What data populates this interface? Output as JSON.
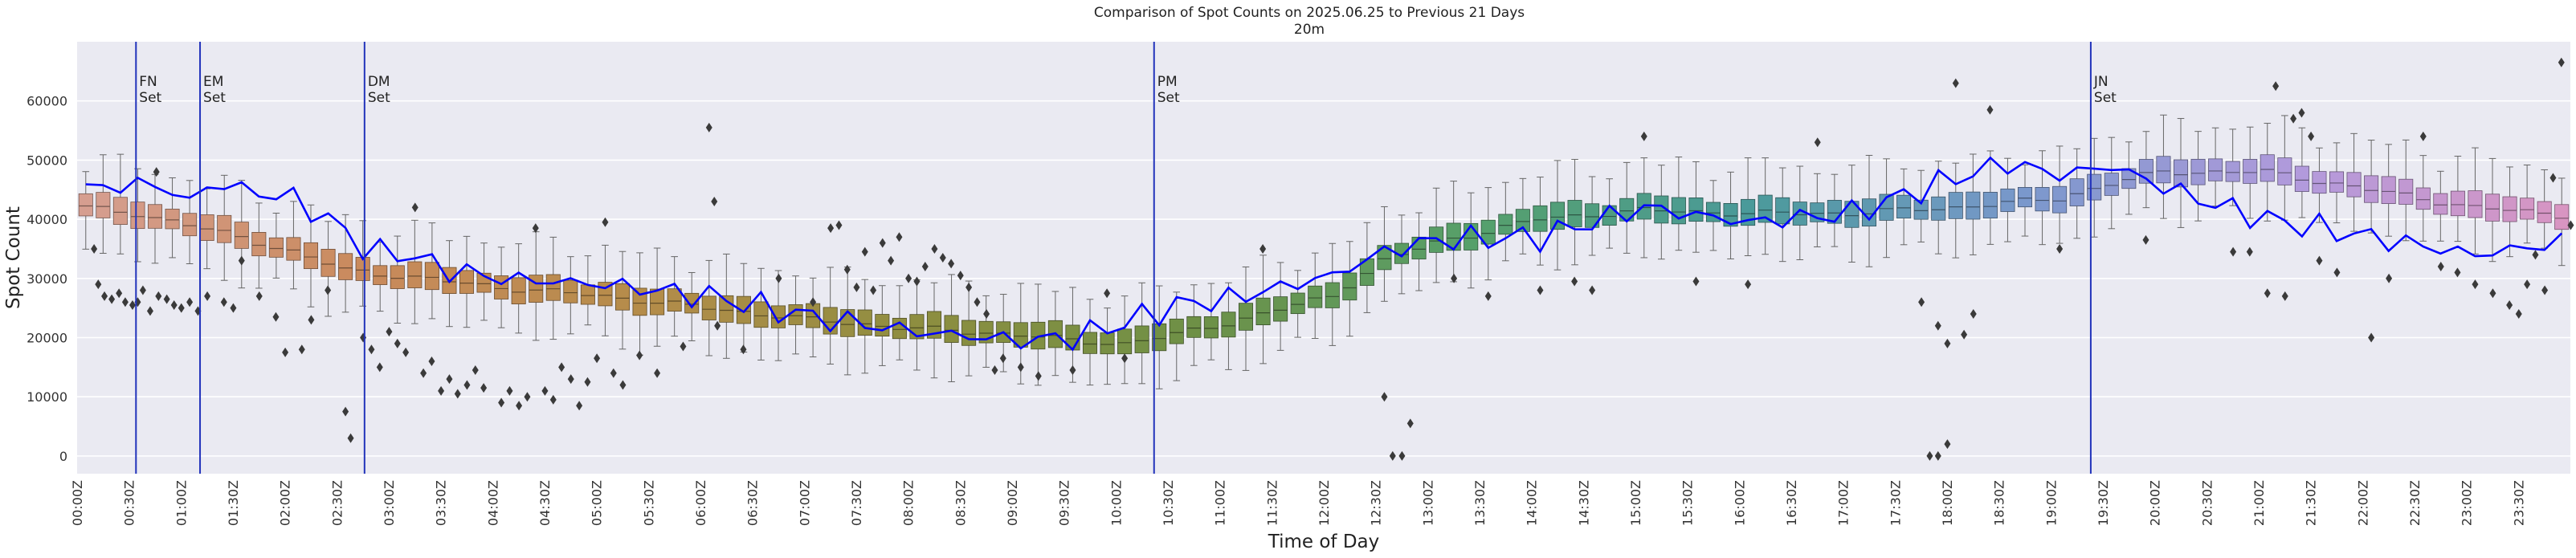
{
  "chart_data": {
    "type": "box",
    "title": "Comparison of Spot Counts on 2025.06.25 to Previous 21 Days",
    "subtitle": "20m",
    "xlabel": "Time of Day",
    "ylabel": "Spot Count",
    "ylim": [
      -3000,
      70000
    ],
    "yticks": [
      0,
      10000,
      20000,
      30000,
      40000,
      50000,
      60000
    ],
    "ytick_labels": [
      "0",
      "10000",
      "20000",
      "30000",
      "40000",
      "50000",
      "60000"
    ],
    "slot_minutes": 10,
    "grid": true,
    "xtick_labels": [
      "00:00Z",
      "00:30Z",
      "01:00Z",
      "01:30Z",
      "02:00Z",
      "02:30Z",
      "03:00Z",
      "03:30Z",
      "04:00Z",
      "04:30Z",
      "05:00Z",
      "05:30Z",
      "06:00Z",
      "06:30Z",
      "07:00Z",
      "07:30Z",
      "08:00Z",
      "08:30Z",
      "09:00Z",
      "09:30Z",
      "10:00Z",
      "10:30Z",
      "11:00Z",
      "11:30Z",
      "12:00Z",
      "12:30Z",
      "13:00Z",
      "13:30Z",
      "14:00Z",
      "14:30Z",
      "15:00Z",
      "15:30Z",
      "16:00Z",
      "16:30Z",
      "17:00Z",
      "17:30Z",
      "18:00Z",
      "18:30Z",
      "19:00Z",
      "19:30Z",
      "20:00Z",
      "20:30Z",
      "21:00Z",
      "21:30Z",
      "22:00Z",
      "22:30Z",
      "23:00Z",
      "23:30Z"
    ],
    "median_anchors": {
      "hours": [
        0,
        0.5,
        1,
        1.5,
        2,
        2.5,
        3,
        3.5,
        4,
        5,
        6,
        7,
        8,
        9,
        9.5,
        10,
        10.5,
        11,
        12,
        12.5,
        13,
        14,
        15,
        16,
        17,
        18,
        19,
        19.5,
        20,
        21,
        22,
        23,
        24
      ],
      "values": [
        42000,
        41000,
        39000,
        37000,
        34500,
        31500,
        30500,
        29500,
        28500,
        27000,
        25000,
        23000,
        21500,
        20500,
        19500,
        19000,
        20500,
        22500,
        27000,
        33000,
        36000,
        40000,
        41500,
        41000,
        41000,
        42000,
        43500,
        46000,
        48000,
        48000,
        45000,
        42000,
        40500
      ]
    },
    "today_anchors": {
      "hours": [
        0,
        0.5,
        0.75,
        1,
        1.25,
        1.5,
        2,
        2.5,
        2.75,
        3,
        3.5,
        4,
        5,
        6,
        7,
        8,
        9,
        9.5,
        10,
        10.5,
        11,
        12,
        12.5,
        13,
        14,
        15,
        16,
        17,
        18,
        18.5,
        19,
        19.5,
        20,
        20.5,
        21,
        22,
        23,
        24
      ],
      "values": [
        45000,
        46000,
        45500,
        43000,
        46500,
        45000,
        43500,
        38000,
        34000,
        34500,
        31500,
        30000,
        29000,
        27000,
        23500,
        21000,
        19500,
        20000,
        22500,
        25500,
        26500,
        30500,
        34500,
        36500,
        37000,
        42000,
        39500,
        41000,
        47000,
        49500,
        47500,
        49000,
        45500,
        42500,
        40000,
        37000,
        34000,
        36500
      ]
    },
    "palette": {
      "stops": [
        0,
        16,
        32,
        48,
        64,
        80,
        96,
        112,
        128,
        143
      ],
      "colors": [
        "#D69E90",
        "#C98A5C",
        "#B58C4A",
        "#8E8E40",
        "#6E9046",
        "#56A06A",
        "#4A9A9A",
        "#7A98CC",
        "#B29ADC",
        "#D895C2"
      ]
    },
    "line_color": "#0000FF",
    "vline_color": "#2233BB",
    "annotations": [
      {
        "hour": 0.5667,
        "line1": "FN",
        "line2": "Set"
      },
      {
        "hour": 1.1833,
        "line1": "EM",
        "line2": "Set"
      },
      {
        "hour": 2.7667,
        "line1": "DM",
        "line2": "Set"
      },
      {
        "hour": 10.3667,
        "line1": "PM",
        "line2": "Set"
      },
      {
        "hour": 19.3833,
        "line1": "JN",
        "line2": "Set"
      }
    ],
    "outliers": [
      [
        0.08,
        35000
      ],
      [
        0.12,
        29000
      ],
      [
        0.18,
        27000
      ],
      [
        0.25,
        26500
      ],
      [
        0.32,
        27500
      ],
      [
        0.38,
        26000
      ],
      [
        0.45,
        25500
      ],
      [
        0.5,
        26000
      ],
      [
        0.55,
        28000
      ],
      [
        0.62,
        24500
      ],
      [
        0.68,
        48000
      ],
      [
        0.7,
        27000
      ],
      [
        0.78,
        26500
      ],
      [
        0.85,
        25500
      ],
      [
        0.92,
        25000
      ],
      [
        1,
        26000
      ],
      [
        1.08,
        24500
      ],
      [
        1.17,
        27000
      ],
      [
        1.33,
        26000
      ],
      [
        1.42,
        25000
      ],
      [
        1.5,
        33000
      ],
      [
        1.67,
        27000
      ],
      [
        1.83,
        23500
      ],
      [
        1.92,
        17500
      ],
      [
        2.08,
        18000
      ],
      [
        2.17,
        23000
      ],
      [
        2.33,
        28000
      ],
      [
        2.5,
        7500
      ],
      [
        2.55,
        3000
      ],
      [
        2.67,
        20000
      ],
      [
        2.75,
        18000
      ],
      [
        2.83,
        15000
      ],
      [
        2.92,
        21000
      ],
      [
        3,
        19000
      ],
      [
        3.08,
        17500
      ],
      [
        3.17,
        42000
      ],
      [
        3.25,
        14000
      ],
      [
        3.33,
        16000
      ],
      [
        3.42,
        11000
      ],
      [
        3.5,
        13000
      ],
      [
        3.58,
        10500
      ],
      [
        3.67,
        12000
      ],
      [
        3.75,
        14500
      ],
      [
        3.83,
        11500
      ],
      [
        4,
        9000
      ],
      [
        4.08,
        11000
      ],
      [
        4.17,
        8500
      ],
      [
        4.25,
        10000
      ],
      [
        4.33,
        38500
      ],
      [
        4.42,
        11000
      ],
      [
        4.5,
        9500
      ],
      [
        4.58,
        15000
      ],
      [
        4.67,
        13000
      ],
      [
        4.75,
        8500
      ],
      [
        4.83,
        12500
      ],
      [
        4.92,
        16500
      ],
      [
        5,
        39500
      ],
      [
        5.08,
        14000
      ],
      [
        5.17,
        12000
      ],
      [
        5.33,
        17000
      ],
      [
        5.5,
        14000
      ],
      [
        5.75,
        18500
      ],
      [
        6,
        55500
      ],
      [
        6.05,
        43000
      ],
      [
        6.08,
        22000
      ],
      [
        6.33,
        18000
      ],
      [
        6.67,
        30000
      ],
      [
        7,
        26000
      ],
      [
        7.17,
        38500
      ],
      [
        7.25,
        39000
      ],
      [
        7.33,
        31500
      ],
      [
        7.42,
        28500
      ],
      [
        7.5,
        34500
      ],
      [
        7.58,
        28000
      ],
      [
        7.67,
        36000
      ],
      [
        7.75,
        33000
      ],
      [
        7.83,
        37000
      ],
      [
        7.92,
        30000
      ],
      [
        8,
        29500
      ],
      [
        8.08,
        32000
      ],
      [
        8.17,
        35000
      ],
      [
        8.25,
        33500
      ],
      [
        8.33,
        32500
      ],
      [
        8.42,
        30500
      ],
      [
        8.5,
        28500
      ],
      [
        8.58,
        26000
      ],
      [
        8.67,
        24000
      ],
      [
        8.75,
        14500
      ],
      [
        8.83,
        16500
      ],
      [
        9,
        15000
      ],
      [
        9.17,
        13500
      ],
      [
        9.5,
        14500
      ],
      [
        9.83,
        27500
      ],
      [
        10,
        16500
      ],
      [
        11.33,
        35000
      ],
      [
        12.5,
        10000
      ],
      [
        12.58,
        0
      ],
      [
        12.67,
        0
      ],
      [
        12.75,
        5500
      ],
      [
        13.17,
        30000
      ],
      [
        13.5,
        27000
      ],
      [
        14,
        28000
      ],
      [
        14.33,
        29500
      ],
      [
        14.5,
        28000
      ],
      [
        15,
        54000
      ],
      [
        15.5,
        29500
      ],
      [
        16,
        29000
      ],
      [
        16.67,
        53000
      ],
      [
        17.67,
        26000
      ],
      [
        17.83,
        22000
      ],
      [
        17.92,
        19000
      ],
      [
        18,
        63000
      ],
      [
        18.08,
        20500
      ],
      [
        17.75,
        0
      ],
      [
        17.83,
        0
      ],
      [
        17.92,
        2000
      ],
      [
        18.17,
        24000
      ],
      [
        18.33,
        58500
      ],
      [
        19,
        35000
      ],
      [
        19.83,
        36500
      ],
      [
        20.67,
        34500
      ],
      [
        20.83,
        34500
      ],
      [
        21,
        27500
      ],
      [
        21.08,
        62500
      ],
      [
        21.17,
        27000
      ],
      [
        21.25,
        57000
      ],
      [
        21.33,
        58000
      ],
      [
        21.42,
        54000
      ],
      [
        21.5,
        33000
      ],
      [
        21.67,
        31000
      ],
      [
        22,
        20000
      ],
      [
        22.17,
        30000
      ],
      [
        22.5,
        54000
      ],
      [
        22.83,
        31000
      ],
      [
        23,
        29000
      ],
      [
        23.17,
        27500
      ],
      [
        23.33,
        25500
      ],
      [
        23.5,
        29000
      ],
      [
        23.67,
        28000
      ],
      [
        23.83,
        66500
      ],
      [
        23.92,
        39000
      ],
      [
        23.75,
        47000
      ],
      [
        23.58,
        34000
      ],
      [
        23.42,
        24000
      ],
      [
        22.67,
        32000
      ]
    ]
  }
}
